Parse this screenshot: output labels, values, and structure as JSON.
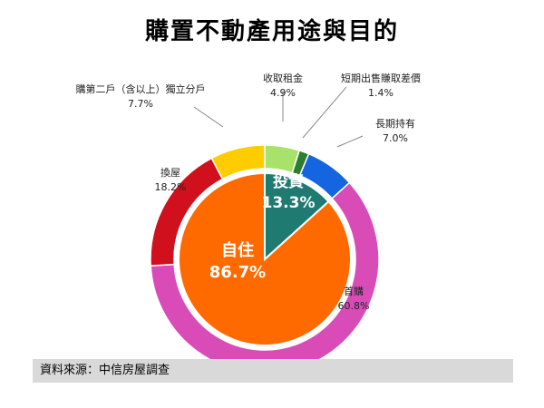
{
  "title": "購置不動產用途與目的",
  "source": "資料來源：中信房屋調查",
  "chart_data": {
    "type": "pie",
    "inner": [
      {
        "label": "投資",
        "value": 13.3,
        "display": "13.3%",
        "color": "#1f7a72"
      },
      {
        "label": "自住",
        "value": 86.7,
        "display": "86.7%",
        "color": "#ff6a00"
      }
    ],
    "outer": [
      {
        "label": "收取租金",
        "value": 4.9,
        "display": "4.9%",
        "color": "#a8e26a"
      },
      {
        "label": "短期出售賺取差價",
        "value": 1.4,
        "display": "1.4%",
        "color": "#2e7d32"
      },
      {
        "label": "長期持有",
        "value": 7.0,
        "display": "7.0%",
        "color": "#1565e0"
      },
      {
        "label": "首購",
        "value": 60.8,
        "display": "60.8%",
        "color": "#d94cb8"
      },
      {
        "label": "換屋",
        "value": 18.2,
        "display": "18.2%",
        "color": "#d0101c"
      },
      {
        "label": "購第二戶（含以上）獨立分戶",
        "value": 7.7,
        "display": "7.7%",
        "color": "#ffcc00"
      }
    ]
  }
}
